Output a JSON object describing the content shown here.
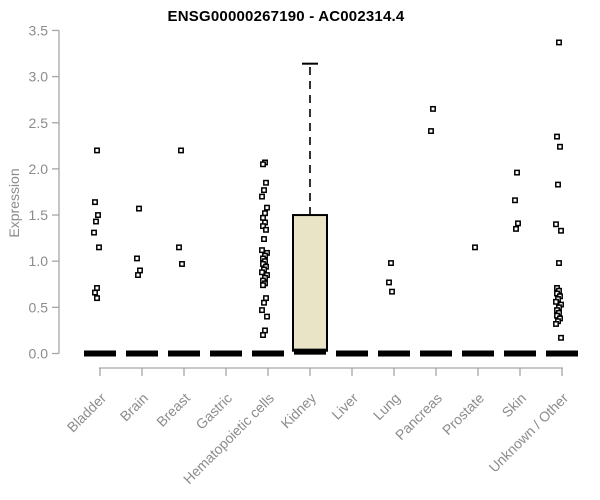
{
  "chart_data": {
    "type": "boxplot",
    "title": "ENSG00000267190 - AC002314.4",
    "ylabel": "Expression",
    "xlabel": "",
    "ylim": [
      0.0,
      3.5
    ],
    "ytick_step": 0.5,
    "grid": false,
    "legend": "none",
    "colors": {
      "box_fill": "#EAE4C7",
      "box_stroke": "#000000",
      "point": "#000000",
      "point_fill": "#FFFFFF",
      "median_bar": "#000000",
      "axis_line": "#A6A6A6",
      "tick_label": "#8C8C8C",
      "title": "#000000"
    },
    "categories": [
      {
        "label": "Bladder",
        "box": {
          "q1": 0,
          "median": 0,
          "q3": 0,
          "whisker_high": 0
        },
        "points": [
          2.2,
          1.64,
          1.5,
          1.43,
          1.31,
          1.15,
          0.71,
          0.66,
          0.6
        ]
      },
      {
        "label": "Brain",
        "box": {
          "q1": 0,
          "median": 0,
          "q3": 0,
          "whisker_high": 0
        },
        "points": [
          1.57,
          1.03,
          0.9,
          0.85
        ]
      },
      {
        "label": "Breast",
        "box": {
          "q1": 0,
          "median": 0,
          "q3": 0,
          "whisker_high": 0
        },
        "points": [
          2.2,
          1.15,
          0.97
        ]
      },
      {
        "label": "Gastric",
        "box": {
          "q1": 0,
          "median": 0,
          "q3": 0,
          "whisker_high": 0
        },
        "points": []
      },
      {
        "label": "Hematopoietic cells",
        "box": {
          "q1": 0,
          "median": 0,
          "q3": 0,
          "whisker_high": 0
        },
        "points": [
          2.07,
          2.05,
          1.85,
          1.77,
          1.7,
          1.58,
          1.52,
          1.47,
          1.42,
          1.38,
          1.34,
          1.24,
          1.12,
          1.09,
          1.06,
          1.03,
          1.0,
          0.97,
          0.94,
          0.91,
          0.88,
          0.85,
          0.82,
          0.79,
          0.76,
          0.74,
          0.6,
          0.55,
          0.47,
          0.4,
          0.25,
          0.2
        ]
      },
      {
        "label": "Kidney",
        "box": {
          "q1": 0.03,
          "median": 0.02,
          "q3": 1.5,
          "whisker_high": 3.14
        },
        "points": []
      },
      {
        "label": "Liver",
        "box": {
          "q1": 0,
          "median": 0,
          "q3": 0,
          "whisker_high": 0
        },
        "points": []
      },
      {
        "label": "Lung",
        "box": {
          "q1": 0,
          "median": 0,
          "q3": 0,
          "whisker_high": 0
        },
        "points": [
          0.98,
          0.77,
          0.67
        ]
      },
      {
        "label": "Pancreas",
        "box": {
          "q1": 0,
          "median": 0,
          "q3": 0,
          "whisker_high": 0
        },
        "points": [
          2.65,
          2.41
        ]
      },
      {
        "label": "Prostate",
        "box": {
          "q1": 0,
          "median": 0,
          "q3": 0,
          "whisker_high": 0
        },
        "points": [
          1.15
        ]
      },
      {
        "label": "Skin",
        "box": {
          "q1": 0,
          "median": 0,
          "q3": 0,
          "whisker_high": 0
        },
        "points": [
          1.96,
          1.66,
          1.41,
          1.35
        ]
      },
      {
        "label": "Unknown / Other",
        "box": {
          "q1": 0,
          "median": 0,
          "q3": 0,
          "whisker_high": 0
        },
        "points": [
          3.37,
          2.35,
          2.24,
          1.83,
          1.4,
          1.33,
          0.98,
          0.71,
          0.68,
          0.65,
          0.62,
          0.59,
          0.56,
          0.53,
          0.5,
          0.47,
          0.44,
          0.41,
          0.38,
          0.35,
          0.32,
          0.17
        ]
      }
    ]
  }
}
